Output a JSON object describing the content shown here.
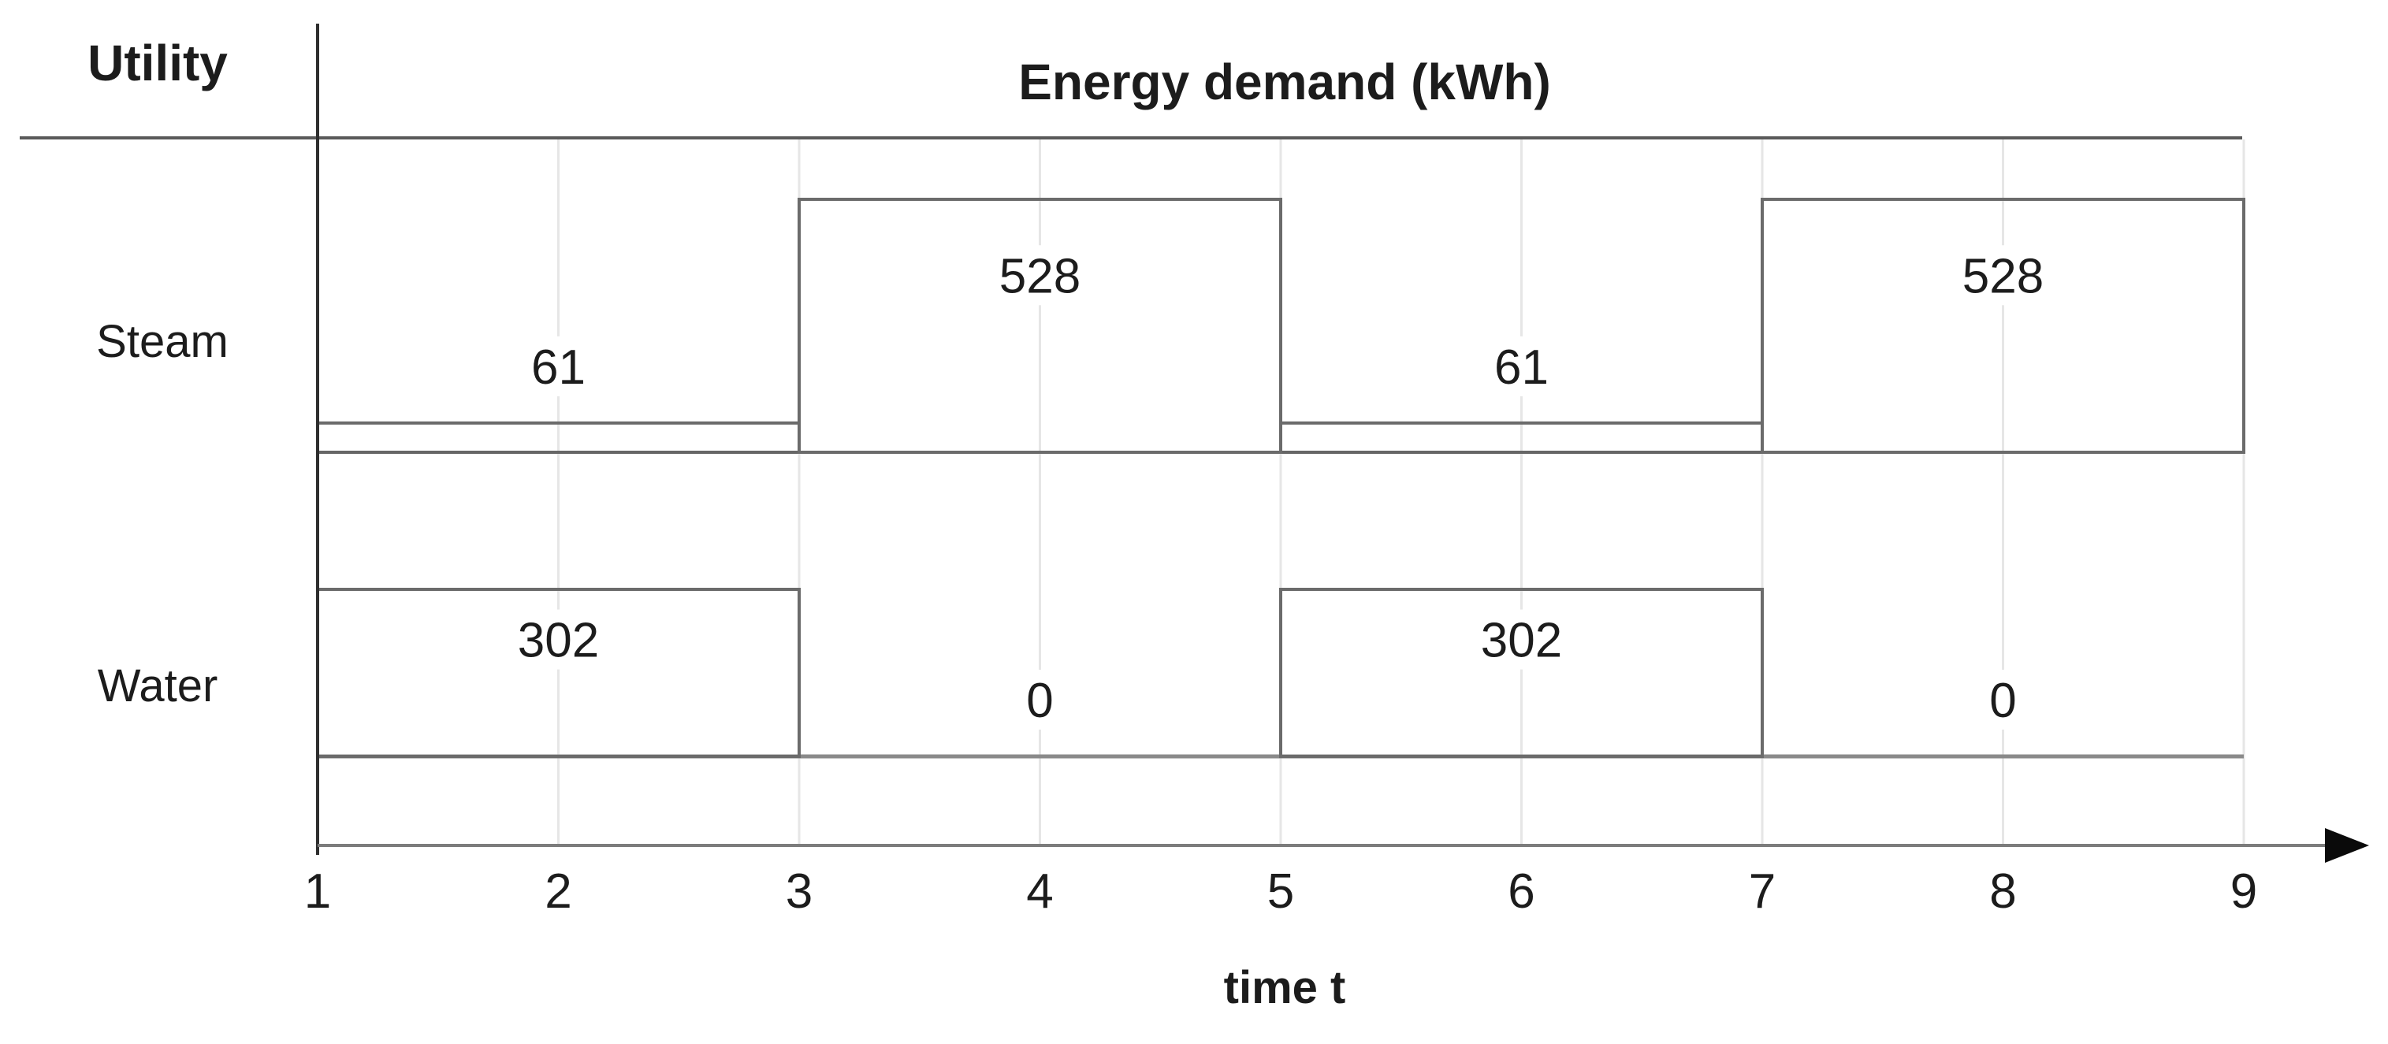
{
  "figure": {
    "header_label": "Utility"
  },
  "chart_data": {
    "type": "step",
    "title": "Energy demand (kWh)",
    "xlabel": "time t",
    "x_ticks": [
      "1",
      "2",
      "3",
      "4",
      "5",
      "6",
      "7",
      "8",
      "9"
    ],
    "x_range": [
      1,
      9
    ],
    "grid": "light vertical gridlines at each integer t",
    "legend_position": "none",
    "rows": [
      {
        "label": "Steam",
        "segments": [
          {
            "t_start": 1,
            "t_end": 3,
            "value": 61
          },
          {
            "t_start": 3,
            "t_end": 5,
            "value": 528
          },
          {
            "t_start": 5,
            "t_end": 7,
            "value": 61
          },
          {
            "t_start": 7,
            "t_end": 9,
            "value": 528
          }
        ]
      },
      {
        "label": "Water",
        "segments": [
          {
            "t_start": 1,
            "t_end": 3,
            "value": 302
          },
          {
            "t_start": 3,
            "t_end": 5,
            "value": 0
          },
          {
            "t_start": 5,
            "t_end": 7,
            "value": 302
          },
          {
            "t_start": 7,
            "t_end": 9,
            "value": 0
          }
        ]
      }
    ],
    "colors": {
      "box_stroke": "#6b6b6b",
      "steam_baseline": "#666666",
      "water_baseline": "#8a8a8a",
      "axis": "#2e2e2e",
      "x_axis": "#7c7c7c",
      "grid": "#e6e6e6",
      "text": "#1c1c1c",
      "arrow": "#0a0a0a",
      "header_rule": "#5a5a5a",
      "background": "#ffffff"
    }
  }
}
